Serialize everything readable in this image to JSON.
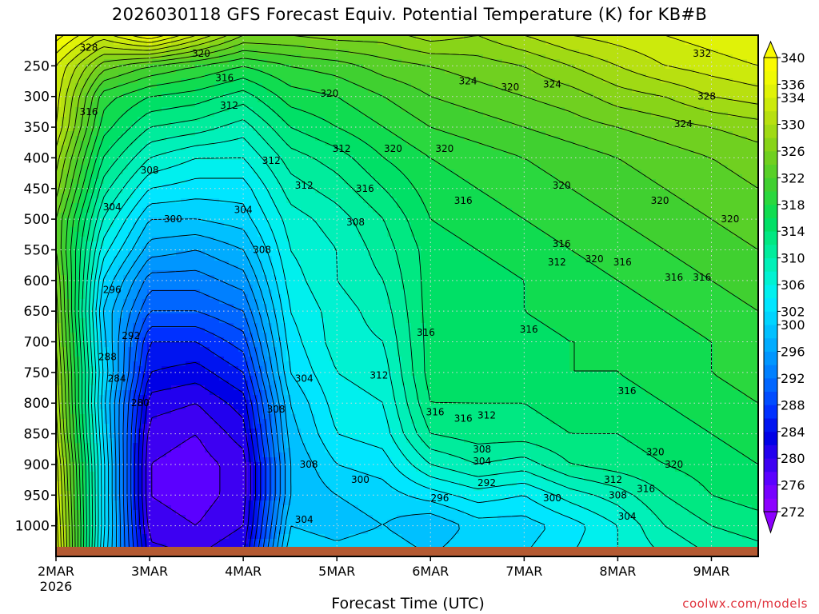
{
  "title": "2026030118 GFS Forecast Equiv. Potential Temperature (K) for KB#B",
  "xlabel": "Forecast Time (UTC)",
  "credit": "coolwx.com/models",
  "chart_data": {
    "type": "contour-fill",
    "title": "2026030118 GFS Forecast Equiv. Potential Temperature (K) for KB#B",
    "xlabel": "Forecast Time (UTC)",
    "ylabel": "",
    "y_axis": "pressure (hPa), inverted",
    "ylim": [
      1050,
      200
    ],
    "y_ticks": [
      250,
      300,
      350,
      400,
      450,
      500,
      550,
      600,
      650,
      700,
      750,
      800,
      850,
      900,
      950,
      1000
    ],
    "x_ticks": [
      "2MAR",
      "3MAR",
      "4MAR",
      "5MAR",
      "6MAR",
      "7MAR",
      "8MAR",
      "9MAR"
    ],
    "x_tick_year": "2026",
    "xlim_days": [
      0,
      7.5
    ],
    "grid": true,
    "colorbar": {
      "levels": [
        272,
        274,
        276,
        278,
        280,
        282,
        284,
        286,
        288,
        290,
        292,
        294,
        296,
        298,
        300,
        302,
        304,
        306,
        308,
        310,
        312,
        314,
        316,
        318,
        320,
        322,
        324,
        326,
        328,
        330,
        332,
        334,
        336,
        338,
        340
      ],
      "labels": [
        340,
        336,
        334,
        330,
        326,
        322,
        318,
        314,
        310,
        306,
        302,
        300,
        296,
        292,
        288,
        284,
        280,
        276,
        272
      ],
      "colors": [
        "#8c00ff",
        "#7700ff",
        "#5b00ff",
        "#3d00f2",
        "#2200ee",
        "#0000e6",
        "#0014f0",
        "#0030ff",
        "#004cff",
        "#0066ff",
        "#0080ff",
        "#0096ff",
        "#00acff",
        "#00c0ff",
        "#00d4ff",
        "#00e6ff",
        "#00f0ee",
        "#00f2d2",
        "#00f0b8",
        "#00ec9c",
        "#00e882",
        "#00e066",
        "#10dc50",
        "#2ad83e",
        "#40d030",
        "#58d028",
        "#70d020",
        "#88d418",
        "#a0da14",
        "#b8e010",
        "#ccea0c",
        "#e0f208",
        "#f0fa04",
        "#fafa00"
      ],
      "extend": "both"
    },
    "time_days": [
      0,
      0.5,
      1,
      1.5,
      2,
      2.5,
      3,
      3.5,
      4,
      4.5,
      5,
      5.5,
      6,
      6.5,
      7,
      7.5
    ],
    "pressure_levels": [
      200,
      250,
      300,
      350,
      400,
      450,
      500,
      550,
      600,
      650,
      700,
      750,
      800,
      850,
      900,
      950,
      1000,
      1050
    ],
    "theta_e_K": [
      [
        339,
        334,
        333,
        332,
        329,
        327,
        324,
        324,
        326,
        327,
        328,
        329,
        330,
        331,
        333,
        334,
        335,
        336
      ],
      [
        333,
        325,
        319,
        317,
        314,
        311,
        308,
        305,
        302,
        300,
        301,
        302,
        301,
        302,
        303,
        303,
        303,
        302
      ],
      [
        338,
        322,
        316,
        312,
        308,
        304,
        300,
        297,
        293,
        290,
        286,
        284,
        281,
        279,
        278,
        278,
        279,
        281
      ],
      [
        332,
        320,
        315,
        311,
        306,
        303,
        300,
        296,
        293,
        290,
        286,
        283,
        280,
        278,
        277,
        277,
        278,
        280
      ],
      [
        326,
        318,
        313,
        309,
        306,
        303,
        301,
        298,
        295,
        292,
        289,
        286,
        283,
        281,
        279,
        279,
        280,
        282
      ],
      [
        326,
        320,
        317,
        314,
        311,
        309,
        307,
        306,
        305,
        304,
        303,
        302,
        300,
        299,
        298,
        298,
        300,
        302
      ],
      [
        327,
        321,
        318,
        316,
        313,
        311,
        309,
        308,
        308,
        307,
        307,
        306,
        305,
        304,
        302,
        300,
        299,
        301
      ],
      [
        327,
        323,
        320,
        318,
        316,
        314,
        312,
        311,
        310,
        309,
        308,
        307,
        306,
        305,
        303,
        301,
        300,
        302
      ],
      [
        329,
        324,
        322,
        320,
        318,
        317,
        316,
        315,
        315,
        315,
        315,
        315,
        314,
        312,
        308,
        303,
        298,
        300
      ],
      [
        328,
        325,
        323,
        321,
        319,
        318,
        317,
        316,
        315,
        315,
        315,
        315,
        314,
        313,
        310,
        305,
        301,
        302
      ],
      [
        330,
        326,
        324,
        322,
        320,
        319,
        318,
        317,
        316,
        316,
        315,
        315,
        314,
        313,
        309,
        304,
        301,
        302
      ],
      [
        332,
        328,
        325,
        323,
        321,
        320,
        319,
        318,
        317,
        317,
        316,
        316,
        315,
        314,
        312,
        307,
        303,
        304
      ],
      [
        333,
        330,
        327,
        324,
        322,
        321,
        320,
        319,
        318,
        317,
        316,
        316,
        315,
        314,
        313,
        309,
        306,
        306
      ],
      [
        334,
        332,
        328,
        325,
        323,
        322,
        321,
        320,
        319,
        318,
        317,
        317,
        316,
        315,
        314,
        312,
        310,
        308
      ],
      [
        335,
        333,
        330,
        326,
        324,
        323,
        322,
        321,
        320,
        319,
        318,
        318,
        317,
        316,
        315,
        314,
        312,
        310
      ],
      [
        336,
        334,
        331,
        327,
        325,
        324,
        323,
        322,
        321,
        320,
        319,
        319,
        318,
        317,
        316,
        315,
        313,
        311
      ]
    ],
    "contour_labels": [
      {
        "value": 328,
        "time_days": 0.35,
        "pressure": 220
      },
      {
        "value": 324,
        "time_days": 1.8,
        "pressure": 205
      },
      {
        "value": 320,
        "time_days": 1.55,
        "pressure": 230
      },
      {
        "value": 316,
        "time_days": 1.8,
        "pressure": 270
      },
      {
        "value": 316,
        "time_days": 0.35,
        "pressure": 325
      },
      {
        "value": 312,
        "time_days": 1.85,
        "pressure": 315
      },
      {
        "value": 320,
        "time_days": 2.92,
        "pressure": 295
      },
      {
        "value": 312,
        "time_days": 3.05,
        "pressure": 385
      },
      {
        "value": 312,
        "time_days": 2.3,
        "pressure": 405
      },
      {
        "value": 308,
        "time_days": 1.0,
        "pressure": 420
      },
      {
        "value": 312,
        "time_days": 2.65,
        "pressure": 445
      },
      {
        "value": 304,
        "time_days": 0.6,
        "pressure": 480
      },
      {
        "value": 300,
        "time_days": 1.25,
        "pressure": 500
      },
      {
        "value": 304,
        "time_days": 2.0,
        "pressure": 485
      },
      {
        "value": 308,
        "time_days": 2.2,
        "pressure": 550
      },
      {
        "value": 296,
        "time_days": 0.6,
        "pressure": 615
      },
      {
        "value": 292,
        "time_days": 0.8,
        "pressure": 690
      },
      {
        "value": 288,
        "time_days": 0.55,
        "pressure": 725
      },
      {
        "value": 284,
        "time_days": 0.65,
        "pressure": 760
      },
      {
        "value": 300,
        "time_days": 0.1,
        "pressure": 800
      },
      {
        "value": 280,
        "time_days": 0.9,
        "pressure": 800
      },
      {
        "value": 316,
        "time_days": 3.3,
        "pressure": 450
      },
      {
        "value": 308,
        "time_days": 3.2,
        "pressure": 505
      },
      {
        "value": 320,
        "time_days": 3.6,
        "pressure": 385
      },
      {
        "value": 320,
        "time_days": 4.15,
        "pressure": 385
      },
      {
        "value": 324,
        "time_days": 4.4,
        "pressure": 275
      },
      {
        "value": 320,
        "time_days": 4.85,
        "pressure": 285
      },
      {
        "value": 324,
        "time_days": 5.3,
        "pressure": 280
      },
      {
        "value": 328,
        "time_days": 5.75,
        "pressure": 210
      },
      {
        "value": 332,
        "time_days": 6.9,
        "pressure": 230
      },
      {
        "value": 328,
        "time_days": 6.95,
        "pressure": 300
      },
      {
        "value": 324,
        "time_days": 6.7,
        "pressure": 345
      },
      {
        "value": 316,
        "time_days": 4.35,
        "pressure": 470
      },
      {
        "value": 320,
        "time_days": 5.4,
        "pressure": 445
      },
      {
        "value": 320,
        "time_days": 6.45,
        "pressure": 470
      },
      {
        "value": 320,
        "time_days": 7.2,
        "pressure": 500
      },
      {
        "value": 316,
        "time_days": 5.4,
        "pressure": 540
      },
      {
        "value": 312,
        "time_days": 5.35,
        "pressure": 570
      },
      {
        "value": 320,
        "time_days": 5.75,
        "pressure": 565
      },
      {
        "value": 316,
        "time_days": 6.05,
        "pressure": 570
      },
      {
        "value": 316,
        "time_days": 6.6,
        "pressure": 595
      },
      {
        "value": 316,
        "time_days": 6.9,
        "pressure": 595
      },
      {
        "value": 316,
        "time_days": 3.95,
        "pressure": 685
      },
      {
        "value": 316,
        "time_days": 5.05,
        "pressure": 680
      },
      {
        "value": 304,
        "time_days": 2.65,
        "pressure": 760
      },
      {
        "value": 312,
        "time_days": 3.45,
        "pressure": 755
      },
      {
        "value": 308,
        "time_days": 2.35,
        "pressure": 810
      },
      {
        "value": 316,
        "time_days": 4.05,
        "pressure": 815
      },
      {
        "value": 316,
        "time_days": 4.35,
        "pressure": 825
      },
      {
        "value": 312,
        "time_days": 4.6,
        "pressure": 820
      },
      {
        "value": 308,
        "time_days": 4.55,
        "pressure": 875
      },
      {
        "value": 304,
        "time_days": 4.55,
        "pressure": 895
      },
      {
        "value": 308,
        "time_days": 2.7,
        "pressure": 900
      },
      {
        "value": 300,
        "time_days": 3.25,
        "pressure": 925
      },
      {
        "value": 296,
        "time_days": 4.1,
        "pressure": 955
      },
      {
        "value": 292,
        "time_days": 4.6,
        "pressure": 930
      },
      {
        "value": 300,
        "time_days": 5.3,
        "pressure": 955
      },
      {
        "value": 316,
        "time_days": 6.1,
        "pressure": 780
      },
      {
        "value": 320,
        "time_days": 6.4,
        "pressure": 880
      },
      {
        "value": 320,
        "time_days": 6.6,
        "pressure": 900
      },
      {
        "value": 312,
        "time_days": 5.95,
        "pressure": 925
      },
      {
        "value": 308,
        "time_days": 6.0,
        "pressure": 950
      },
      {
        "value": 316,
        "time_days": 6.3,
        "pressure": 940
      },
      {
        "value": 304,
        "time_days": 2.65,
        "pressure": 990
      },
      {
        "value": 304,
        "time_days": 6.1,
        "pressure": 985
      }
    ]
  }
}
